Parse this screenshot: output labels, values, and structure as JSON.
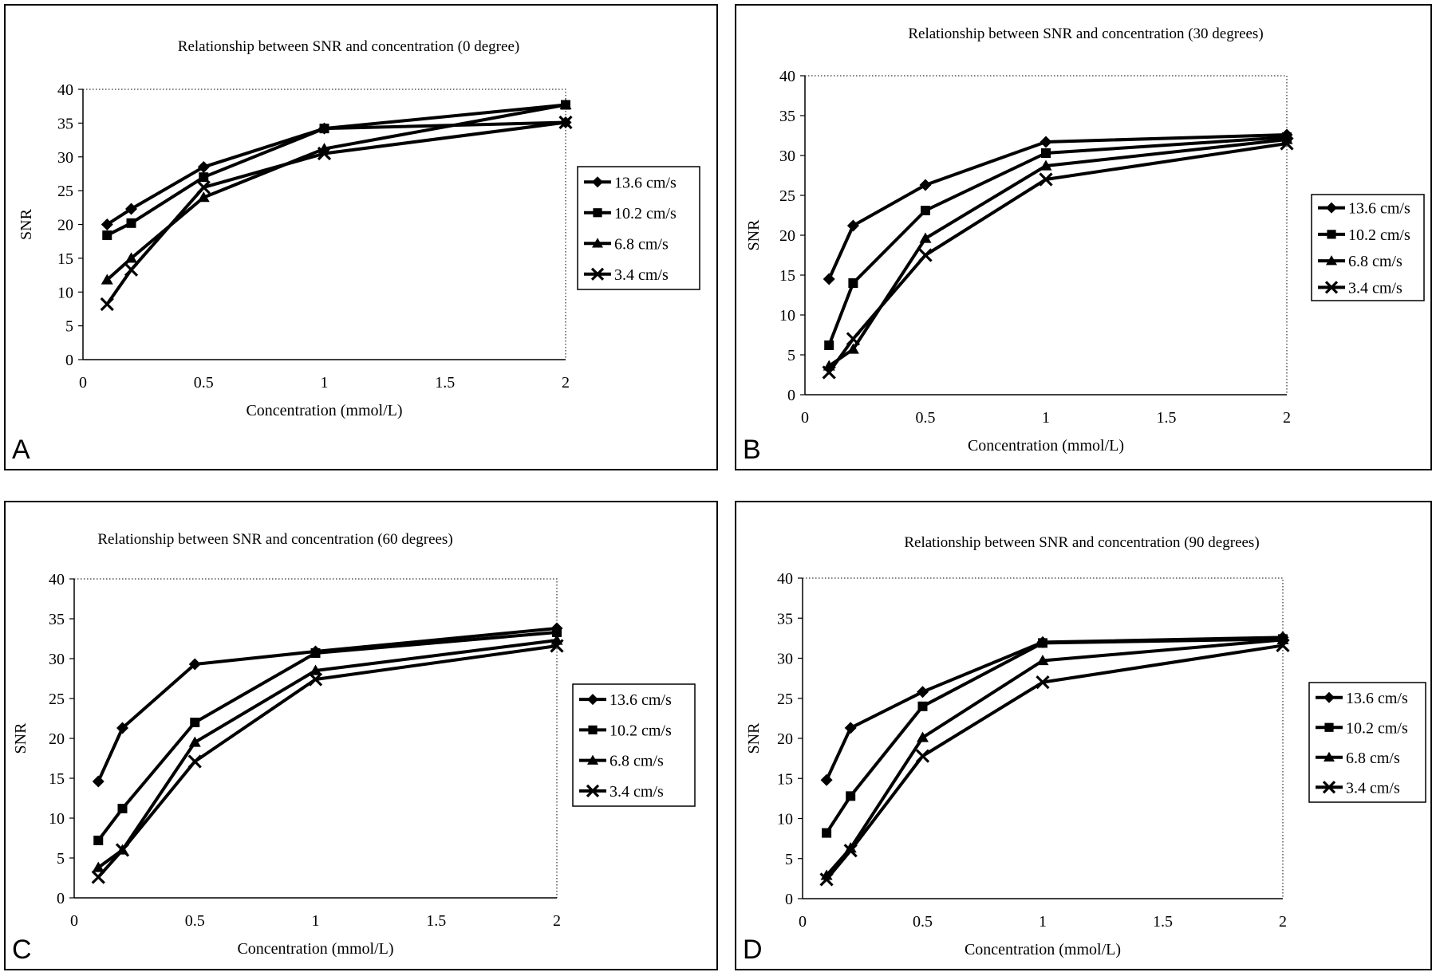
{
  "chart_data": [
    {
      "panel_label": "A",
      "type": "line",
      "title": "Relationship between SNR and concentration  (0 degree)",
      "xlabel": "Concentration (mmol/L)",
      "ylabel": "SNR",
      "xlim": [
        0,
        2
      ],
      "ylim": [
        0,
        40
      ],
      "xticks": [
        "0",
        "0.5",
        "1",
        "1.5",
        "2"
      ],
      "yticks": [
        "0",
        "5",
        "10",
        "15",
        "20",
        "25",
        "30",
        "35",
        "40"
      ],
      "x": [
        0.1,
        0.2,
        0.5,
        1,
        2
      ],
      "legend_position": "right",
      "series": [
        {
          "name": "13.6 cm/s",
          "marker": "diamond",
          "values": [
            20.0,
            22.3,
            28.5,
            34.2,
            35.1
          ]
        },
        {
          "name": "10.2 cm/s",
          "marker": "square",
          "values": [
            18.4,
            20.2,
            27.0,
            34.2,
            37.7
          ]
        },
        {
          "name": "6.8 cm/s",
          "marker": "triangle",
          "values": [
            11.8,
            15.0,
            24.0,
            31.2,
            37.7
          ]
        },
        {
          "name": "3.4 cm/s",
          "marker": "x",
          "values": [
            8.2,
            13.3,
            25.5,
            30.5,
            35.1
          ]
        }
      ]
    },
    {
      "panel_label": "B",
      "type": "line",
      "title": "Relationship between SNR and concentration (30 degrees)",
      "xlabel": "Concentration (mmol/L)",
      "ylabel": "SNR",
      "xlim": [
        0,
        2
      ],
      "ylim": [
        0,
        40
      ],
      "xticks": [
        "0",
        "0.5",
        "1",
        "1.5",
        "2"
      ],
      "yticks": [
        "0",
        "5",
        "10",
        "15",
        "20",
        "25",
        "30",
        "35",
        "40"
      ],
      "x": [
        0.1,
        0.2,
        0.5,
        1,
        2
      ],
      "legend_position": "right",
      "series": [
        {
          "name": "13.6 cm/s",
          "marker": "diamond",
          "values": [
            14.5,
            21.2,
            26.3,
            31.7,
            32.6
          ]
        },
        {
          "name": "10.2 cm/s",
          "marker": "square",
          "values": [
            6.2,
            14.0,
            23.1,
            30.3,
            32.3
          ]
        },
        {
          "name": "6.8 cm/s",
          "marker": "triangle",
          "values": [
            3.6,
            5.7,
            19.6,
            28.7,
            32.0
          ]
        },
        {
          "name": "3.4 cm/s",
          "marker": "x",
          "values": [
            2.8,
            7.0,
            17.5,
            27.0,
            31.5
          ]
        }
      ]
    },
    {
      "panel_label": "C",
      "type": "line",
      "title": "Relationship between SNR and concentration (60 degrees)",
      "xlabel": "Concentration (mmol/L)",
      "ylabel": "SNR",
      "xlim": [
        0,
        2
      ],
      "ylim": [
        0,
        40
      ],
      "xticks": [
        "0",
        "0.5",
        "1",
        "1.5",
        "2"
      ],
      "yticks": [
        "0",
        "5",
        "10",
        "15",
        "20",
        "25",
        "30",
        "35",
        "40"
      ],
      "x": [
        0.1,
        0.2,
        0.5,
        1,
        2
      ],
      "legend_position": "right",
      "series": [
        {
          "name": "13.6 cm/s",
          "marker": "diamond",
          "values": [
            14.6,
            21.3,
            29.3,
            30.9,
            33.8
          ]
        },
        {
          "name": "10.2 cm/s",
          "marker": "square",
          "values": [
            7.2,
            11.2,
            22.0,
            30.7,
            33.3
          ]
        },
        {
          "name": "6.8 cm/s",
          "marker": "triangle",
          "values": [
            3.8,
            6.0,
            19.5,
            28.5,
            32.3
          ]
        },
        {
          "name": "3.4 cm/s",
          "marker": "x",
          "values": [
            2.6,
            6.0,
            17.1,
            27.4,
            31.6
          ]
        }
      ]
    },
    {
      "panel_label": "D",
      "type": "line",
      "title": "Relationship between SNR and concentration (90 degrees)",
      "xlabel": "Concentration (mmol/L)",
      "ylabel": "SNR",
      "xlim": [
        0,
        2
      ],
      "ylim": [
        0,
        40
      ],
      "xticks": [
        "0",
        "0.5",
        "1",
        "1.5",
        "2"
      ],
      "yticks": [
        "0",
        "5",
        "10",
        "15",
        "20",
        "25",
        "30",
        "35",
        "40"
      ],
      "x": [
        0.1,
        0.2,
        0.5,
        1,
        2
      ],
      "legend_position": "right",
      "series": [
        {
          "name": "13.6 cm/s",
          "marker": "diamond",
          "values": [
            14.8,
            21.3,
            25.8,
            32.0,
            32.6
          ]
        },
        {
          "name": "10.2 cm/s",
          "marker": "square",
          "values": [
            8.2,
            12.8,
            24.0,
            31.9,
            32.4
          ]
        },
        {
          "name": "6.8 cm/s",
          "marker": "triangle",
          "values": [
            2.9,
            6.3,
            20.1,
            29.7,
            32.3
          ]
        },
        {
          "name": "3.4 cm/s",
          "marker": "x",
          "values": [
            2.4,
            6.0,
            17.8,
            27.0,
            31.6
          ]
        }
      ]
    }
  ]
}
